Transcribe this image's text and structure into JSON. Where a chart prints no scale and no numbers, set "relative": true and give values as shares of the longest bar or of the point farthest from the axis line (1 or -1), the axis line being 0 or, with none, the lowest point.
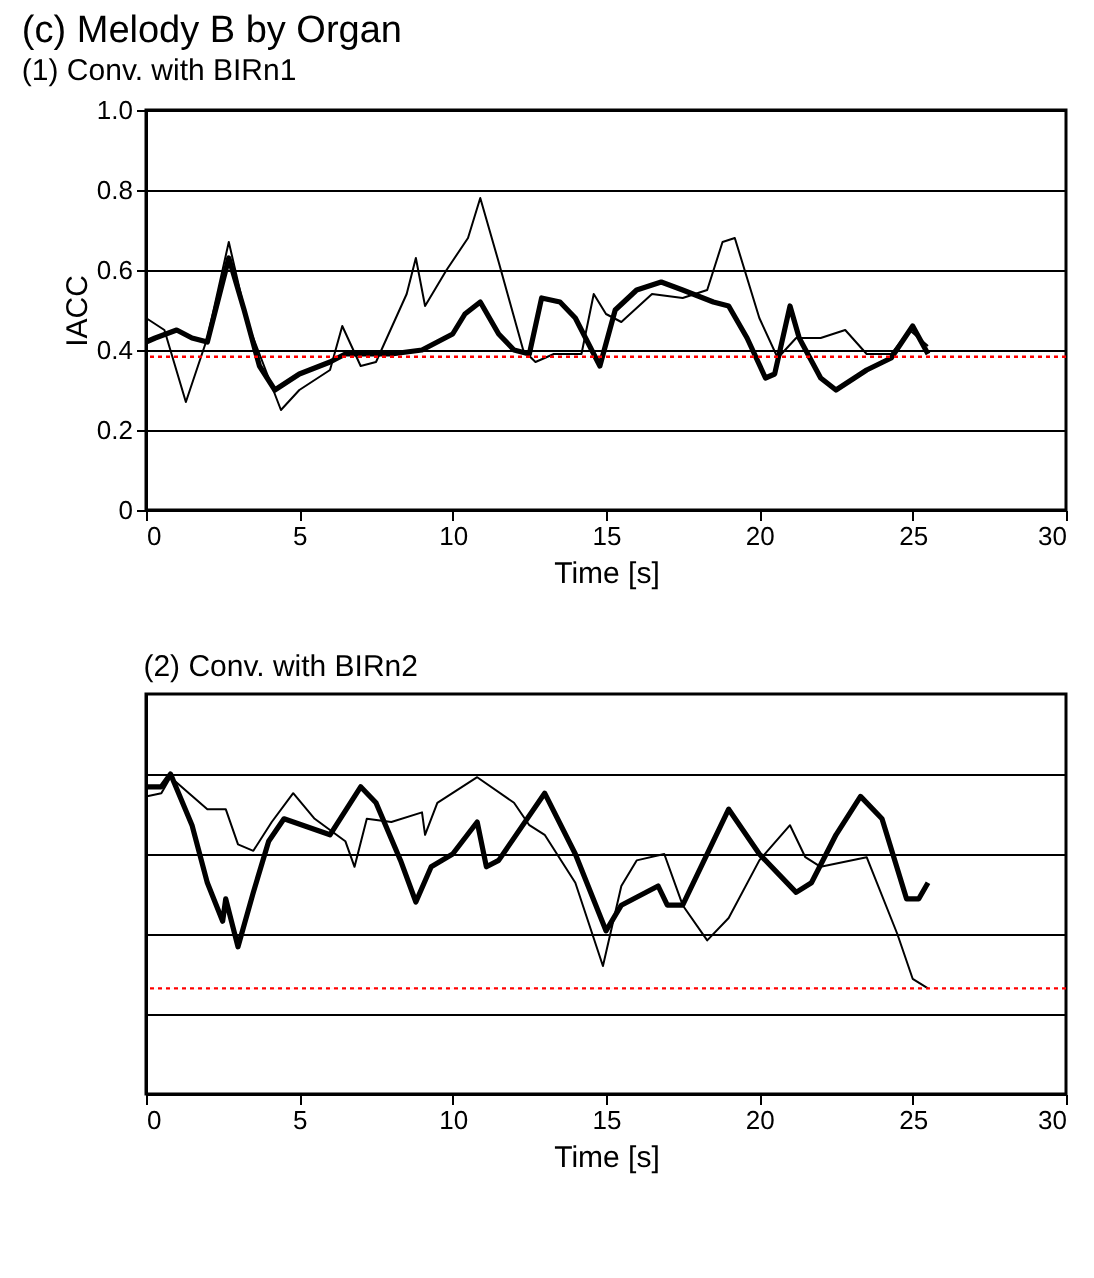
{
  "chart_data": [
    {
      "type": "line",
      "title": "(c) Melody B by Organ",
      "subtitle": "(1) Conv. with BIRn1",
      "xlabel": "Time [s]",
      "ylabel": "IACC",
      "xlim": [
        0,
        30
      ],
      "xticks": [
        0,
        5,
        10,
        15,
        20,
        25,
        30
      ],
      "ylim": [
        0,
        1
      ],
      "yticks": [
        {
          "value": 0,
          "label": "0"
        },
        0.2,
        0.4,
        0.6,
        0.8,
        {
          "value": 1,
          "label": "1.0"
        }
      ],
      "grid": "y",
      "marker": "none",
      "line_style": "solid",
      "ref_lines": [
        {
          "axis": "y",
          "value": 0.383,
          "color": "#ff0000",
          "line_style": "dotted"
        }
      ],
      "series": [
        {
          "color": "#000000",
          "x": [
            0,
            0.3,
            1,
            1.5,
            2,
            2.7,
            3.2,
            3.7,
            4.2,
            5,
            6,
            6.5,
            8,
            9,
            10,
            10.4,
            10.9,
            11.5,
            12,
            12.5,
            12.9,
            13.5,
            14,
            14.8,
            15.3,
            16,
            16.8,
            17.5,
            18.5,
            19,
            19.6,
            20.2,
            20.5,
            21,
            21.3,
            22,
            22.5,
            23.5,
            24.3,
            25,
            25.5
          ],
          "values": [
            0.42,
            0.43,
            0.45,
            0.43,
            0.42,
            0.63,
            0.5,
            0.36,
            0.3,
            0.34,
            0.37,
            0.39,
            0.39,
            0.4,
            0.44,
            0.49,
            0.52,
            0.44,
            0.4,
            0.39,
            0.53,
            0.52,
            0.48,
            0.36,
            0.5,
            0.55,
            0.57,
            0.55,
            0.52,
            0.51,
            0.43,
            0.33,
            0.34,
            0.51,
            0.43,
            0.33,
            0.3,
            0.35,
            0.38,
            0.46,
            0.39
          ]
        },
        {
          "color": "#000000",
          "x": [
            0,
            0.6,
            1.3,
            2,
            2.7,
            3.3,
            4.4,
            5,
            6,
            6.4,
            7,
            7.5,
            8.5,
            8.8,
            9.1,
            9.8,
            10.5,
            10.9,
            11.5,
            12.3,
            12.7,
            13.3,
            14.2,
            14.6,
            15,
            15.5,
            16.5,
            17.5,
            18.3,
            18.8,
            19.2,
            20,
            20.6,
            21.2,
            22,
            22.8,
            23.5,
            24.3,
            24.9,
            25.5
          ],
          "values": [
            0.48,
            0.45,
            0.27,
            0.43,
            0.67,
            0.47,
            0.25,
            0.3,
            0.35,
            0.46,
            0.36,
            0.37,
            0.54,
            0.63,
            0.51,
            0.6,
            0.68,
            0.78,
            0.62,
            0.4,
            0.37,
            0.39,
            0.39,
            0.54,
            0.49,
            0.47,
            0.54,
            0.53,
            0.55,
            0.67,
            0.68,
            0.48,
            0.38,
            0.43,
            0.43,
            0.45,
            0.39,
            0.39,
            0.45,
            0.41
          ]
        }
      ]
    },
    {
      "type": "line",
      "title": "(2) Conv. with BIRn2",
      "xlabel": "Time [s]",
      "xlim": [
        0,
        30
      ],
      "xticks": [
        0,
        5,
        10,
        15,
        20,
        25,
        30
      ],
      "relative": true,
      "grid": "y",
      "marker": "none",
      "line_style": "solid",
      "ref_lines": [
        {
          "axis": "y",
          "value": 0.33,
          "color": "#ff0000",
          "line_style": "dotted"
        }
      ],
      "series": [
        {
          "color": "#000000",
          "x": [
            0,
            0.5,
            0.8,
            1.5,
            2,
            2.5,
            2.6,
            3,
            3.5,
            4,
            4.5,
            6,
            7,
            7.5,
            8.3,
            8.8,
            9.3,
            10,
            10.8,
            11.1,
            11.5,
            13,
            14,
            15,
            15.5,
            16.7,
            17,
            17.5,
            19,
            20,
            21.2,
            21.7,
            22.5,
            23.3,
            24,
            24.8,
            25.2,
            25.5
          ],
          "values": [
            0.96,
            0.96,
            1,
            0.84,
            0.66,
            0.54,
            0.61,
            0.46,
            0.63,
            0.79,
            0.86,
            0.81,
            0.96,
            0.91,
            0.73,
            0.6,
            0.71,
            0.75,
            0.85,
            0.71,
            0.73,
            0.94,
            0.75,
            0.51,
            0.59,
            0.65,
            0.59,
            0.59,
            0.89,
            0.75,
            0.63,
            0.66,
            0.81,
            0.93,
            0.86,
            0.61,
            0.61,
            0.66
          ]
        },
        {
          "color": "#000000",
          "x": [
            0,
            0.5,
            0.8,
            2,
            2.6,
            3,
            3.5,
            4.1,
            4.8,
            5.5,
            6.5,
            6.8,
            7.2,
            8,
            9,
            9.1,
            9.5,
            10.8,
            12,
            12.5,
            13,
            14,
            14.9,
            15.5,
            16,
            16.9,
            17.5,
            18.3,
            19,
            20,
            21,
            21.5,
            22,
            23.5,
            24.5,
            25,
            25.5
          ],
          "values": [
            0.93,
            0.94,
            0.99,
            0.89,
            0.89,
            0.78,
            0.76,
            0.85,
            0.94,
            0.86,
            0.79,
            0.71,
            0.86,
            0.85,
            0.88,
            0.81,
            0.91,
            0.99,
            0.91,
            0.84,
            0.81,
            0.66,
            0.4,
            0.65,
            0.73,
            0.75,
            0.59,
            0.48,
            0.55,
            0.73,
            0.84,
            0.74,
            0.71,
            0.74,
            0.5,
            0.36,
            0.33
          ]
        }
      ]
    }
  ]
}
